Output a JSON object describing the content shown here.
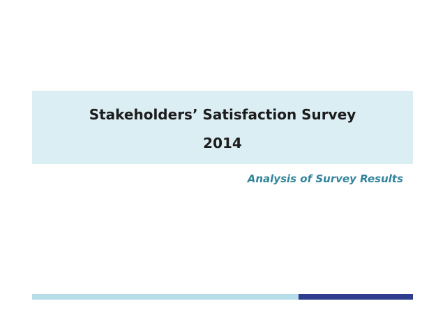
{
  "slide": {
    "title_lines": [
      "Stakeholders’ Satisfaction Survey",
      "2014"
    ],
    "subtitle": "Analysis of Survey Results"
  }
}
